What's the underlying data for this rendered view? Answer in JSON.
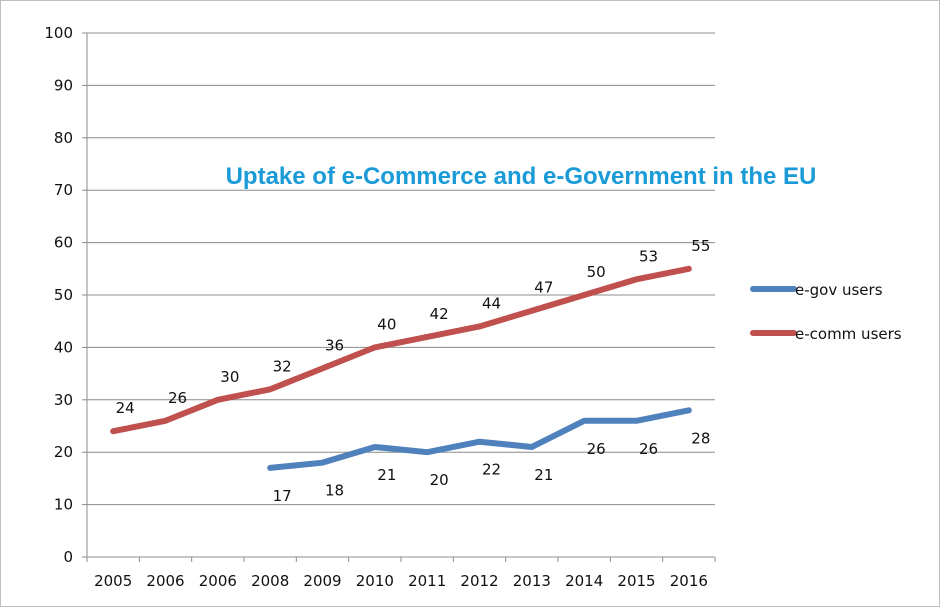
{
  "chart_data": {
    "type": "line",
    "title": "Uptake of e-Commerce and e-Government in the EU",
    "xlabel": "",
    "ylabel": "",
    "categories": [
      "2005",
      "2006",
      "2006",
      "2008",
      "2009",
      "2010",
      "2011",
      "2012",
      "2013",
      "2014",
      "2015",
      "2016"
    ],
    "ylim": [
      0,
      100
    ],
    "yticks": [
      "0",
      "10",
      "20",
      "30",
      "40",
      "50",
      "60",
      "70",
      "80",
      "90",
      "100"
    ],
    "grid": true,
    "legend_position": "right",
    "series": [
      {
        "name": "e-gov users",
        "color": "#4f81bd",
        "values": [
          null,
          null,
          null,
          17,
          18,
          21,
          20,
          22,
          21,
          26,
          26,
          28
        ],
        "labels": [
          "",
          "",
          "",
          "17",
          "18",
          "21",
          "20",
          "22",
          "21",
          "26",
          "26",
          "28"
        ],
        "label_position": "below"
      },
      {
        "name": "e-comm users",
        "color": "#c0504d",
        "values": [
          24,
          26,
          30,
          32,
          36,
          40,
          42,
          44,
          47,
          50,
          53,
          55
        ],
        "labels": [
          "24",
          "26",
          "30",
          "32",
          "36",
          "40",
          "42",
          "44",
          "47",
          "50",
          "53",
          "55"
        ],
        "label_position": "above"
      }
    ]
  }
}
